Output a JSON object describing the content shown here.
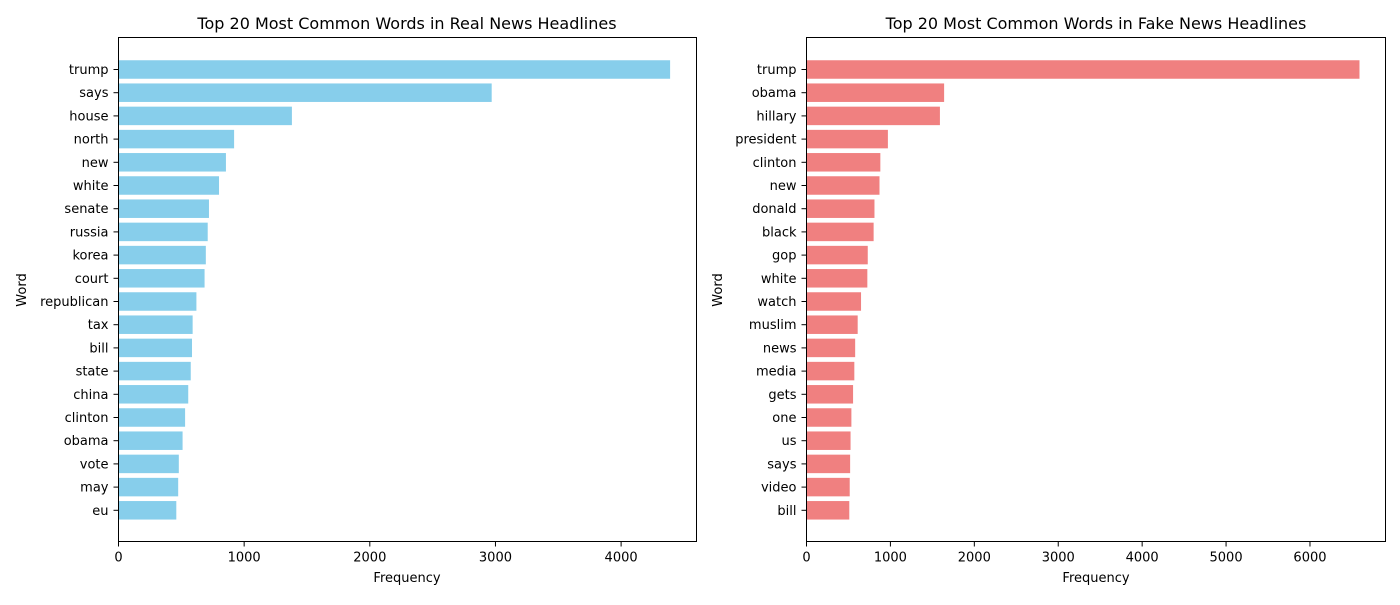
{
  "chart_data": [
    {
      "type": "bar",
      "orientation": "horizontal",
      "title": "Top 20 Most Common Words in Real News Headlines",
      "xlabel": "Frequency",
      "ylabel": "Word",
      "xlim": [
        0,
        4600
      ],
      "xticks": [
        0,
        1000,
        2000,
        3000,
        4000
      ],
      "grid": false,
      "color": "#87ceeb",
      "categories": [
        "trump",
        "says",
        "house",
        "north",
        "new",
        "white",
        "senate",
        "russia",
        "korea",
        "court",
        "republican",
        "tax",
        "bill",
        "state",
        "china",
        "clinton",
        "obama",
        "vote",
        "may",
        "eu"
      ],
      "values": [
        4390,
        2970,
        1380,
        920,
        855,
        800,
        720,
        710,
        695,
        685,
        620,
        590,
        585,
        575,
        555,
        530,
        510,
        480,
        475,
        460
      ]
    },
    {
      "type": "bar",
      "orientation": "horizontal",
      "title": "Top 20 Most Common Words in Fake News Headlines",
      "xlabel": "Frequency",
      "ylabel": "Word",
      "xlim": [
        0,
        6900
      ],
      "xticks": [
        0,
        1000,
        2000,
        3000,
        4000,
        5000,
        6000
      ],
      "grid": false,
      "color": "#f08080",
      "categories": [
        "trump",
        "obama",
        "hillary",
        "president",
        "clinton",
        "new",
        "donald",
        "black",
        "gop",
        "white",
        "watch",
        "muslim",
        "news",
        "media",
        "gets",
        "one",
        "us",
        "says",
        "video",
        "bill"
      ],
      "values": [
        6590,
        1640,
        1590,
        970,
        880,
        870,
        810,
        800,
        730,
        725,
        650,
        610,
        580,
        570,
        555,
        535,
        525,
        520,
        515,
        510
      ]
    }
  ]
}
